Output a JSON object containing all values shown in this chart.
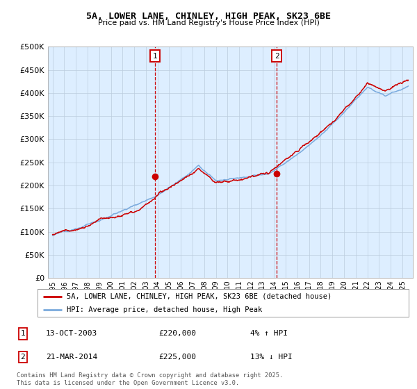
{
  "title": "5A, LOWER LANE, CHINLEY, HIGH PEAK, SK23 6BE",
  "subtitle": "Price paid vs. HM Land Registry's House Price Index (HPI)",
  "yticks": [
    0,
    50000,
    100000,
    150000,
    200000,
    250000,
    300000,
    350000,
    400000,
    450000,
    500000
  ],
  "ylim": [
    0,
    500000
  ],
  "legend_line1": "5A, LOWER LANE, CHINLEY, HIGH PEAK, SK23 6BE (detached house)",
  "legend_line2": "HPI: Average price, detached house, High Peak",
  "annotation1_label": "1",
  "annotation1_date": "13-OCT-2003",
  "annotation1_price": "£220,000",
  "annotation1_hpi": "4% ↑ HPI",
  "annotation2_label": "2",
  "annotation2_date": "21-MAR-2014",
  "annotation2_price": "£225,000",
  "annotation2_hpi": "13% ↓ HPI",
  "footer": "Contains HM Land Registry data © Crown copyright and database right 2025.\nThis data is licensed under the Open Government Licence v3.0.",
  "line_color_red": "#cc0000",
  "line_color_blue": "#7aaadd",
  "vline_color": "#cc0000",
  "background_color": "#ddeeff",
  "plot_bg": "#ffffff",
  "sale1_x": 2003.79,
  "sale1_y": 220000,
  "sale2_x": 2014.22,
  "sale2_y": 225000,
  "xlim_left": 1994.6,
  "xlim_right": 2025.9
}
